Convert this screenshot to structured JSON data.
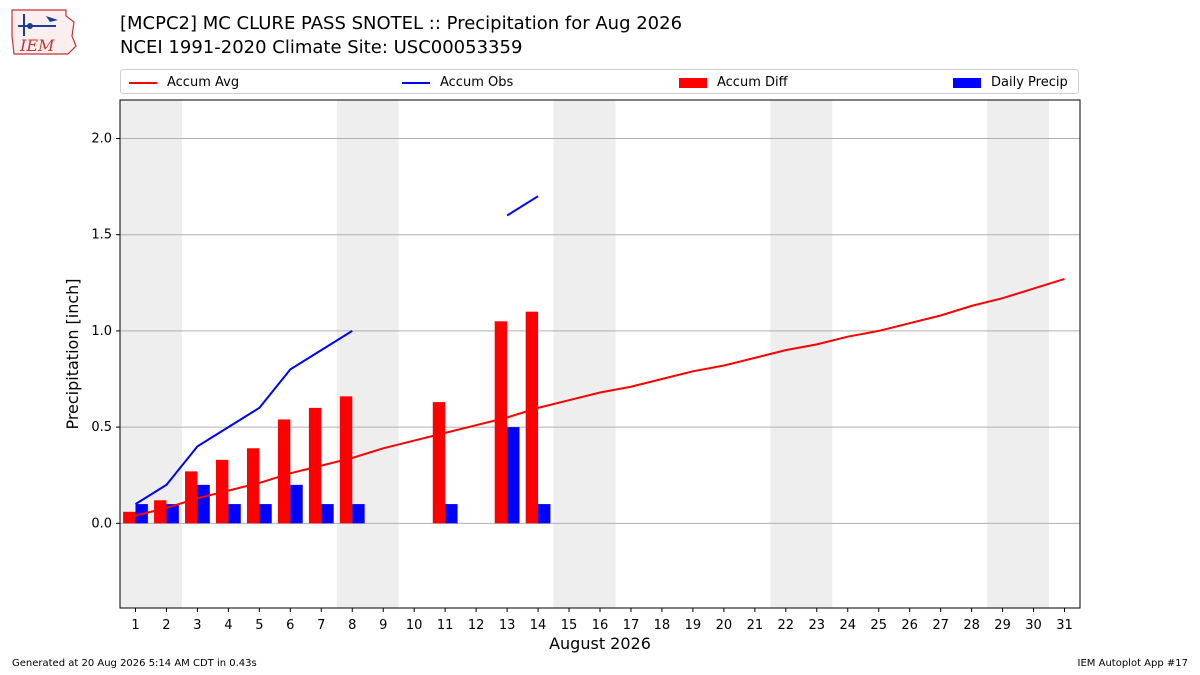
{
  "header": {
    "title_line1": "[MCPC2] MC CLURE PASS SNOTEL :: Precipitation for Aug 2026",
    "title_line2": "NCEI 1991-2020 Climate Site: USC00053359",
    "logo_text": "IEM"
  },
  "footer": {
    "left": "Generated at 20 Aug 2026 5:14 AM CDT in 0.43s",
    "right": "IEM Autoplot App #17"
  },
  "colors": {
    "accum_avg": "#ff0000",
    "accum_obs": "#0000ff",
    "accum_diff": "#ff0000",
    "daily_precip": "#0000ff",
    "weekend_shade": "#eeeeee",
    "grid": "#b0b0b0"
  },
  "chart_data": {
    "type": "bar",
    "xlabel": "August 2026",
    "ylabel": "Precipitation [inch]",
    "ylim": [
      -0.44,
      2.2
    ],
    "xlim": [
      0.5,
      31.5
    ],
    "yticks": [
      0.0,
      0.5,
      1.0,
      1.5,
      2.0
    ],
    "ytick_labels": [
      "0.0",
      "0.5",
      "1.0",
      "1.5",
      "2.0"
    ],
    "days": [
      1,
      2,
      3,
      4,
      5,
      6,
      7,
      8,
      9,
      10,
      11,
      12,
      13,
      14,
      15,
      16,
      17,
      18,
      19,
      20,
      21,
      22,
      23,
      24,
      25,
      26,
      27,
      28,
      29,
      30,
      31
    ],
    "legend": {
      "placement": "top",
      "entries": [
        "Accum Avg",
        "Accum Obs",
        "Accum Diff",
        "Daily Precip"
      ]
    },
    "grid": "horizontal",
    "weekend_shading": [
      [
        1,
        2
      ],
      [
        8,
        9
      ],
      [
        15,
        16
      ],
      [
        22,
        23
      ],
      [
        29,
        30
      ]
    ],
    "series": [
      {
        "name": "Accum Avg",
        "kind": "line",
        "x": [
          1,
          2,
          3,
          4,
          5,
          6,
          7,
          8,
          9,
          10,
          11,
          12,
          13,
          14,
          15,
          16,
          17,
          18,
          19,
          20,
          21,
          22,
          23,
          24,
          25,
          26,
          27,
          28,
          29,
          30,
          31
        ],
        "values": [
          0.04,
          0.08,
          0.13,
          0.17,
          0.21,
          0.26,
          0.3,
          0.34,
          0.39,
          0.43,
          0.47,
          0.51,
          0.55,
          0.6,
          0.64,
          0.68,
          0.71,
          0.75,
          0.79,
          0.82,
          0.86,
          0.9,
          0.93,
          0.97,
          1.0,
          1.04,
          1.08,
          1.13,
          1.17,
          1.22,
          1.27
        ]
      },
      {
        "name": "Accum Obs",
        "kind": "line",
        "segments": [
          {
            "x": [
              1,
              2,
              3,
              4,
              5,
              6,
              7,
              8
            ],
            "values": [
              0.1,
              0.2,
              0.4,
              0.5,
              0.6,
              0.8,
              0.9,
              1.0
            ]
          },
          {
            "x": [
              13,
              14
            ],
            "values": [
              1.6,
              1.7
            ]
          }
        ]
      },
      {
        "name": "Accum Diff",
        "kind": "bar",
        "x": [
          1,
          2,
          3,
          4,
          5,
          6,
          7,
          8,
          11,
          13,
          14
        ],
        "values": [
          0.06,
          0.12,
          0.27,
          0.33,
          0.39,
          0.54,
          0.6,
          0.66,
          0.63,
          1.05,
          1.1
        ]
      },
      {
        "name": "Daily Precip",
        "kind": "bar",
        "x": [
          1,
          2,
          3,
          4,
          5,
          6,
          7,
          8,
          11,
          13,
          14
        ],
        "values": [
          0.1,
          0.1,
          0.2,
          0.1,
          0.1,
          0.2,
          0.1,
          0.1,
          0.1,
          0.5,
          0.1
        ]
      }
    ]
  }
}
